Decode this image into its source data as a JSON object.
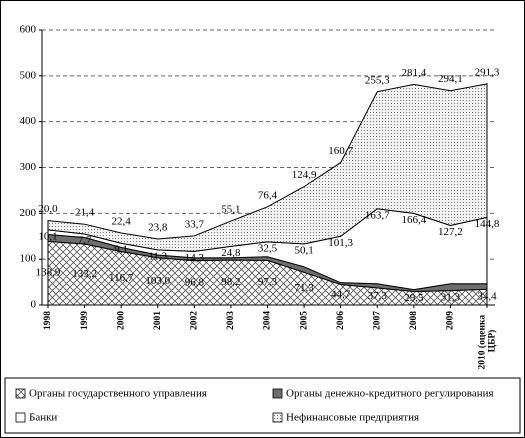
{
  "chart_data": {
    "type": "stacked-area",
    "categories": [
      "1998",
      "1999",
      "2000",
      "2001",
      "2002",
      "2003",
      "2004",
      "2005",
      "2006",
      "2007",
      "2008",
      "2009",
      "2010 (оценка ЦБР)"
    ],
    "series": [
      {
        "name": "Органы государственного управления",
        "color": "#555555",
        "pattern": "crosshatch",
        "values": [
          138.9,
          133.2,
          116.7,
          103.0,
          96.8,
          98.2,
          97.3,
          71.3,
          44.7,
          37.3,
          29.5,
          31.3,
          34.4
        ],
        "value_labels": [
          "138,9",
          "133,2",
          "116,7",
          "103,0",
          "96,8",
          "98,2",
          "97,3",
          "71,3",
          "44,7",
          "37,3",
          "29,5",
          "31,3",
          "34,4"
        ]
      },
      {
        "name": "Органы денежно-кредитного регулирования",
        "color": "#6e6e6e",
        "pattern": "solid",
        "values": [
          15,
          14,
          9,
          6,
          6,
          5,
          8,
          12,
          4,
          9,
          4,
          15,
          12
        ]
      },
      {
        "name": "Банки",
        "color": "#ffffff",
        "pattern": "solid",
        "values": [
          10.1,
          7.7,
          9.1,
          11.3,
          14.3,
          24.8,
          32.5,
          50.1,
          101.3,
          163.7,
          166.4,
          127.2,
          144.8
        ],
        "value_labels": [
          "10,1",
          "7,7",
          "9,1",
          "11,3",
          "14,3",
          "24,8",
          "32,5",
          "50,1",
          "101,3",
          "163,7",
          "166,4",
          "127,2",
          "144,8"
        ]
      },
      {
        "name": "Нефинансовые предприятия",
        "color": "#777777",
        "pattern": "dots",
        "values": [
          20.0,
          21.4,
          22.4,
          23.8,
          33.7,
          55.1,
          76.4,
          124.9,
          160.7,
          255.3,
          281.4,
          294.1,
          291.3
        ],
        "value_labels": [
          "20,0",
          "21,4",
          "22,4",
          "23,8",
          "33,7",
          "55,1",
          "76,4",
          "124,9",
          "160,7",
          "255,3",
          "281,4",
          "294,1",
          "291,3"
        ]
      }
    ],
    "ylim": [
      0,
      600
    ],
    "yticks": [
      0,
      100,
      200,
      300,
      400,
      500,
      600
    ],
    "grid": true
  }
}
